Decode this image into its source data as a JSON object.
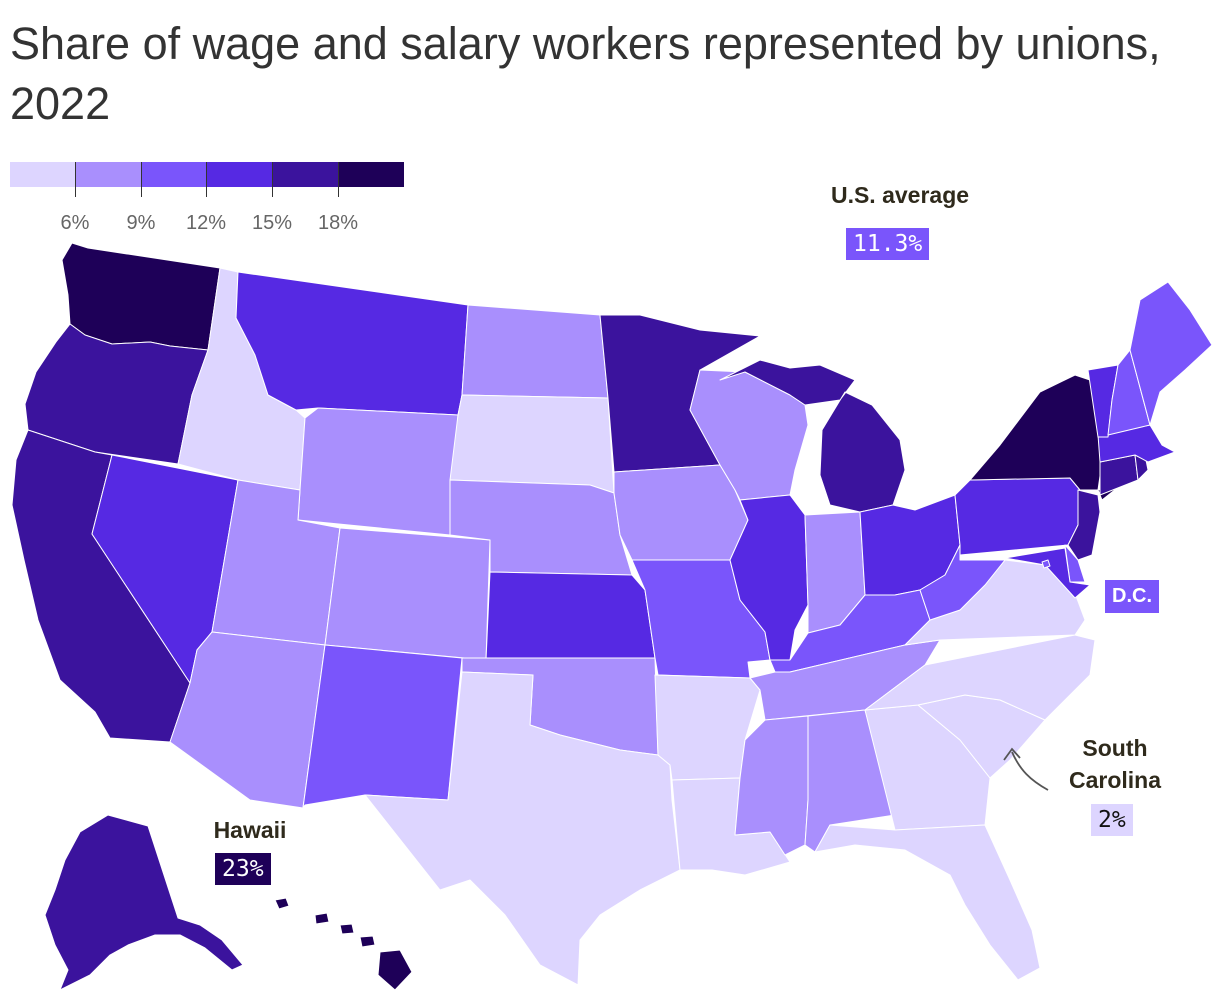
{
  "title": "Share of wage and salary workers represented by unions, 2022",
  "legend": {
    "colors": [
      "#ddd5ff",
      "#a98ffd",
      "#7a55fb",
      "#5629e3",
      "#3b139d",
      "#1e0058"
    ],
    "tick_labels": [
      "6%",
      "9%",
      "12%",
      "15%",
      "18%"
    ]
  },
  "callouts": {
    "us_average": {
      "title": "U.S. average",
      "value": "11.3%"
    },
    "dc": {
      "label": "D.C."
    },
    "hawaii": {
      "title": "Hawaii",
      "value": "23%"
    },
    "south_carolina": {
      "title_line1": "South",
      "title_line2": "Carolina",
      "value": "2%"
    }
  },
  "colors": {
    "c1": "#ddd5ff",
    "c2": "#a98ffd",
    "c3": "#7a55fb",
    "c4": "#5629e3",
    "c5": "#3b139d",
    "c6": "#1e0058"
  },
  "map_data": {
    "type": "choropleth",
    "bins": [
      "<6%",
      "6-9%",
      "9-12%",
      "12-15%",
      "15-18%",
      ">18%"
    ],
    "states": {
      "WA": 6,
      "OR": 5,
      "CA": 5,
      "NV": 4,
      "ID": 1,
      "MT": 4,
      "WY": 2,
      "UT": 2,
      "AZ": 2,
      "CO": 2,
      "NM": 3,
      "ND": 2,
      "SD": 1,
      "NE": 2,
      "KS": 4,
      "OK": 2,
      "TX": 1,
      "MN": 5,
      "IA": 2,
      "MO": 3,
      "AR": 1,
      "LA": 1,
      "WI": 2,
      "IL": 4,
      "MI": 5,
      "IN": 2,
      "OH": 4,
      "KY": 3,
      "TN": 2,
      "MS": 2,
      "AL": 2,
      "GA": 1,
      "FL": 1,
      "SC": 1,
      "NC": 1,
      "VA": 1,
      "WV": 3,
      "PA": 4,
      "NY": 6,
      "VT": 4,
      "NH": 3,
      "ME": 3,
      "MA": 4,
      "RI": 5,
      "CT": 5,
      "NJ": 5,
      "DE": 3,
      "MD": 4,
      "DC": 3,
      "AK": 5,
      "HI": 6
    }
  }
}
